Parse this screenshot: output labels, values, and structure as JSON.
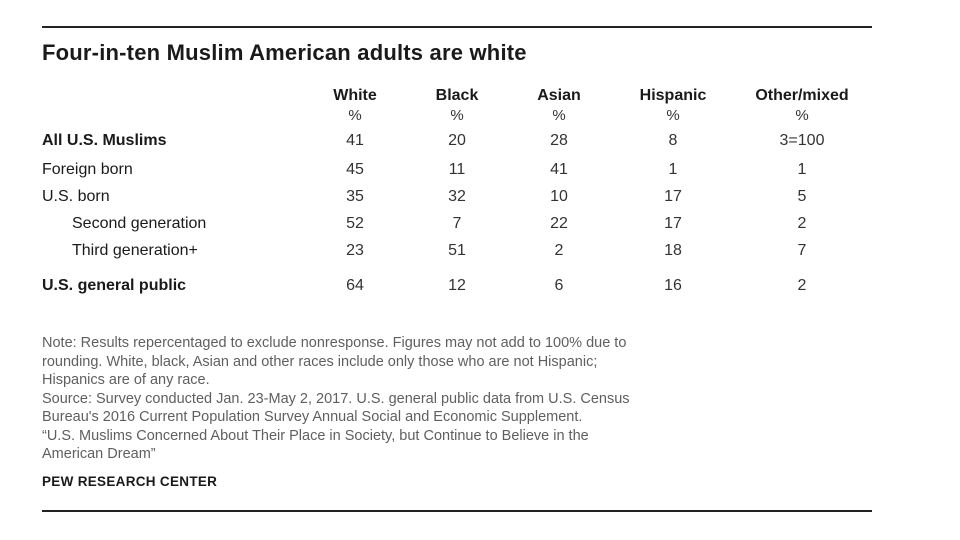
{
  "chart_data": {
    "type": "table",
    "title": "Four-in-ten  Muslim American adults are white",
    "columns": [
      "White",
      "Black",
      "Asian",
      "Hispanic",
      "Other/mixed"
    ],
    "units": [
      "%",
      "%",
      "%",
      "%",
      "%"
    ],
    "rows": [
      {
        "label": "All U.S. Muslims",
        "values": [
          "41",
          "20",
          "28",
          "8",
          "3=100"
        ]
      },
      {
        "label": "Foreign born",
        "values": [
          "45",
          "11",
          "41",
          "1",
          "1"
        ]
      },
      {
        "label": "U.S. born",
        "values": [
          "35",
          "32",
          "10",
          "17",
          "5"
        ]
      },
      {
        "label": "Second generation",
        "values": [
          "52",
          "7",
          "22",
          "17",
          "2"
        ]
      },
      {
        "label": "Third generation+",
        "values": [
          "23",
          "51",
          "2",
          "18",
          "7"
        ]
      },
      {
        "label": "U.S. general public",
        "values": [
          "64",
          "12",
          "6",
          "16",
          "2"
        ]
      }
    ],
    "note_lines": [
      "Note: Results repercentaged to exclude nonresponse. Figures may not add to 100% due to",
      "rounding. White, black, Asian and other races include only those who are not Hispanic;",
      "Hispanics are of any race.",
      "Source: Survey conducted Jan. 23-May 2, 2017. U.S. general public data from U.S. Census",
      "Bureau's 2016 Current Population Survey Annual Social and Economic Supplement.",
      "“U.S. Muslims Concerned About Their Place in Society, but Continue to Believe in the",
      "American Dream”"
    ],
    "source_org": "PEW RESEARCH CENTER"
  }
}
